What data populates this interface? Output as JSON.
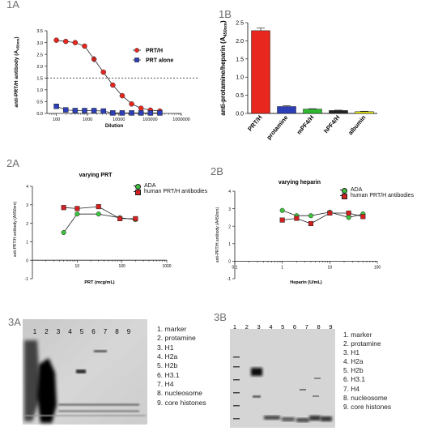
{
  "panels": {
    "p1a": {
      "label": "1A",
      "chart_data": {
        "type": "line",
        "xscale": "log",
        "xlabel": "Dilution",
        "ylabel_main": "anti-PRT/H antibody (A",
        "ylabel_sub": "450nm",
        "ylabel_end": ")",
        "xlim": [
          50,
          1000000
        ],
        "ylim": [
          0,
          3.5
        ],
        "xticks": [
          100,
          1000,
          10000,
          100000,
          1000000
        ],
        "xtick_labels": [
          "100",
          "1000",
          "10000",
          "100000",
          "1000000"
        ],
        "yticks": [
          0,
          0.5,
          1.0,
          1.5,
          2.0,
          2.5,
          3.0,
          3.5
        ],
        "ytick_labels": [
          "0.0",
          "0.5",
          "1.0",
          "1.5",
          "2.0",
          "2.5",
          "3.0",
          "3.5"
        ],
        "hline": 1.5,
        "series": [
          {
            "name": "PRT/H",
            "color": "#e8271f",
            "marker": "circle",
            "x": [
              100,
              200,
              400,
              800,
              1600,
              3200,
              6400,
              12800,
              25600,
              51200,
              102400,
              204800
            ],
            "y": [
              3.1,
              3.05,
              3.0,
              2.85,
              2.3,
              1.75,
              1.2,
              0.75,
              0.4,
              0.22,
              0.14,
              0.1
            ]
          },
          {
            "name": "PRT alone",
            "color": "#2c3fb8",
            "marker": "square",
            "x": [
              100,
              200,
              400,
              800,
              1600,
              3200,
              6400,
              12800,
              25600,
              51200,
              102400,
              204800
            ],
            "y": [
              0.3,
              0.15,
              0.12,
              0.12,
              0.12,
              0.1,
              0.02,
              0.02,
              0.02,
              0.02,
              0.02,
              0.02
            ]
          }
        ]
      }
    },
    "p1b": {
      "label": "1B",
      "chart_data": {
        "type": "bar",
        "ylabel_main": "anti-protamine/heparin (A",
        "ylabel_sub": "450nm",
        "ylabel_end": ")",
        "ylim": [
          0,
          2.5
        ],
        "yticks": [
          0,
          0.5,
          1.0,
          1.5,
          2.0,
          2.5
        ],
        "ytick_labels": [
          "0.0",
          "0.5",
          "1.0",
          "1.5",
          "2.0",
          "2.5"
        ],
        "categories": [
          "PRT/H",
          "protamine",
          "mPF4/H",
          "hPF4/H",
          "albumin"
        ],
        "values": [
          2.28,
          0.19,
          0.12,
          0.08,
          0.05
        ],
        "errors": [
          0.07,
          0.02,
          0.01,
          0.01,
          0.01
        ],
        "colors": [
          "#e8271f",
          "#2c3fb8",
          "#2fb82f",
          "#222222",
          "#e3e314"
        ]
      }
    },
    "p2a": {
      "label": "2A",
      "chart_data": {
        "type": "line",
        "title": "varying PRT",
        "xscale": "log",
        "xlabel": "PRT (mcg/mL)",
        "ylabel": "anti-PRT/H antibody (A450nm)",
        "xlim": [
          1,
          1000
        ],
        "ylim": [
          -1,
          4
        ],
        "xticks": [
          10,
          100,
          1000
        ],
        "xtick_labels": [
          "10",
          "100",
          "1000"
        ],
        "yticks": [
          -1,
          0,
          1,
          2,
          3,
          4
        ],
        "ytick_labels": [
          "-1",
          "0",
          "1",
          "2",
          "3",
          "4"
        ],
        "series": [
          {
            "name": "ADA",
            "color": "#3ec23e",
            "marker": "circle",
            "x": [
              5,
              10,
              30,
              90,
              200
            ],
            "y": [
              1.5,
              2.5,
              2.5,
              2.3,
              2.2
            ]
          },
          {
            "name": "human PRT/H antibodies",
            "color": "#d42020",
            "marker": "square",
            "x": [
              5,
              10,
              30,
              90,
              200
            ],
            "y": [
              2.85,
              2.8,
              2.9,
              2.25,
              2.25
            ]
          }
        ]
      }
    },
    "p2b": {
      "label": "2B",
      "chart_data": {
        "type": "line",
        "title": "varying heparin",
        "xscale": "log",
        "xlabel": "Heparin (U/mL)",
        "ylabel": "anti-PRT/H antibody (A450nm)",
        "xlim": [
          0.1,
          100
        ],
        "ylim": [
          -1,
          4
        ],
        "xticks": [
          0.1,
          1,
          10,
          100
        ],
        "xtick_labels": [
          "0.1",
          "1",
          "10",
          "100"
        ],
        "yticks": [
          -1,
          0,
          1,
          2,
          3,
          4
        ],
        "ytick_labels": [
          "-1",
          "0",
          "1",
          "2",
          "3",
          "4"
        ],
        "series": [
          {
            "name": "ADA",
            "color": "#3ec23e",
            "marker": "circle",
            "x": [
              1,
              2,
              4,
              10,
              25,
              50
            ],
            "y": [
              2.9,
              2.6,
              2.6,
              2.8,
              2.5,
              2.7
            ]
          },
          {
            "name": "human PRT/H antibodies",
            "color": "#d42020",
            "marker": "square",
            "x": [
              1,
              2,
              4,
              10,
              25,
              50
            ],
            "y": [
              2.35,
              2.45,
              2.15,
              2.75,
              2.75,
              2.55
            ]
          }
        ]
      }
    },
    "p3a": {
      "label": "3A",
      "lanes": [
        "1",
        "2",
        "3",
        "4",
        "5",
        "6",
        "7",
        "8",
        "9"
      ],
      "items": [
        "1.  marker",
        "2.  protamine",
        "3.  H1",
        "4.  H2a",
        "5.  H2b",
        "6.  H3.1",
        "7.  H4",
        "8.  nucleosome",
        "9.  core histones"
      ]
    },
    "p3b": {
      "label": "3B",
      "lanes": [
        "1",
        "2",
        "3",
        "4",
        "5",
        "6",
        "7",
        "8",
        "9"
      ],
      "items": [
        "1. marker",
        "2. protamine",
        "3. H1",
        "4. H2a",
        "5. H2b",
        "6. H3.1",
        "7. H4",
        "8. nucleosome",
        "9. core histones"
      ]
    }
  }
}
